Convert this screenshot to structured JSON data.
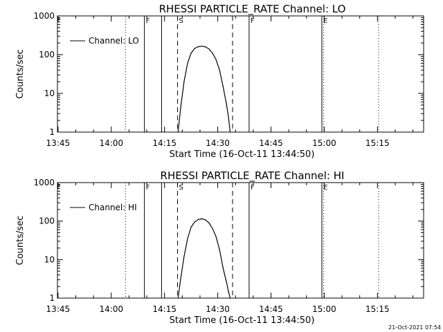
{
  "chart_data": [
    {
      "type": "line",
      "title": "RHESSI PARTICLE_RATE Channel: LO",
      "xlabel": "Start Time (16-Oct-11 13:44:50)",
      "ylabel": "Counts/sec",
      "y_scale": "log",
      "xlim": [
        "13:44:50",
        "15:28:00"
      ],
      "ylim": [
        1,
        1000
      ],
      "xticks": [
        "13:45",
        "14:00",
        "14:15",
        "14:30",
        "14:45",
        "15:00",
        "15:15"
      ],
      "yticks": [
        "1",
        "10",
        "100",
        "1000"
      ],
      "legend": {
        "label": "Channel: LO",
        "placement": "top-left"
      },
      "markers": [
        {
          "label": "F",
          "time": "14:09:20",
          "style": "solid"
        },
        {
          "label": "",
          "time": "14:14:10",
          "style": "solid"
        },
        {
          "label": "S",
          "time": "14:18:40",
          "style": "dashed"
        },
        {
          "label": "",
          "time": "14:34:10",
          "style": "dashed"
        },
        {
          "label": "F",
          "time": "14:38:50",
          "style": "solid"
        },
        {
          "label": "E",
          "time": "14:59:20",
          "style": "solid"
        },
        {
          "label": "",
          "time": "14:04:00",
          "style": "dotted"
        },
        {
          "label": "",
          "time": "14:59:50",
          "style": "dotted"
        },
        {
          "label": "",
          "time": "15:15:20",
          "style": "dotted"
        }
      ],
      "series": [
        {
          "name": "Channel: LO",
          "x": [
            "14:18:50",
            "14:19:30",
            "14:20:30",
            "14:21:30",
            "14:22:30",
            "14:23:30",
            "14:24:30",
            "14:25:30",
            "14:26:30",
            "14:27:30",
            "14:28:30",
            "14:29:30",
            "14:30:30",
            "14:31:30",
            "14:32:30",
            "14:33:00",
            "14:33:30"
          ],
          "values": [
            1,
            4,
            20,
            60,
            110,
            145,
            160,
            165,
            160,
            140,
            110,
            75,
            40,
            15,
            5,
            2.5,
            1
          ]
        }
      ]
    },
    {
      "type": "line",
      "title": "RHESSI PARTICLE_RATE Channel: HI",
      "xlabel": "Start Time (16-Oct-11 13:44:50)",
      "ylabel": "Counts/sec",
      "y_scale": "log",
      "xlim": [
        "13:44:50",
        "15:28:00"
      ],
      "ylim": [
        1,
        1000
      ],
      "xticks": [
        "13:45",
        "14:00",
        "14:15",
        "14:30",
        "14:45",
        "15:00",
        "15:15"
      ],
      "yticks": [
        "1",
        "10",
        "100",
        "1000"
      ],
      "legend": {
        "label": "Channel: HI",
        "placement": "top-left"
      },
      "markers": [
        {
          "label": "F",
          "time": "14:09:20",
          "style": "solid"
        },
        {
          "label": "",
          "time": "14:14:10",
          "style": "solid"
        },
        {
          "label": "S",
          "time": "14:18:40",
          "style": "dashed"
        },
        {
          "label": "",
          "time": "14:34:10",
          "style": "dashed"
        },
        {
          "label": "F",
          "time": "14:38:50",
          "style": "solid"
        },
        {
          "label": "E",
          "time": "14:59:20",
          "style": "solid"
        },
        {
          "label": "",
          "time": "14:04:00",
          "style": "dotted"
        },
        {
          "label": "",
          "time": "14:59:50",
          "style": "dotted"
        },
        {
          "label": "",
          "time": "15:15:20",
          "style": "dotted"
        }
      ],
      "series": [
        {
          "name": "Channel: HI",
          "x": [
            "14:18:50",
            "14:19:30",
            "14:20:30",
            "14:21:30",
            "14:22:30",
            "14:23:30",
            "14:24:30",
            "14:25:30",
            "14:26:30",
            "14:27:30",
            "14:28:30",
            "14:29:30",
            "14:30:30",
            "14:31:30",
            "14:32:30",
            "14:33:00",
            "14:33:30"
          ],
          "values": [
            1,
            3,
            12,
            35,
            70,
            95,
            110,
            115,
            108,
            90,
            65,
            40,
            18,
            6,
            2.5,
            1.5,
            1
          ]
        }
      ]
    }
  ],
  "footer": {
    "timestamp": "21-Oct-2021 07:54"
  }
}
